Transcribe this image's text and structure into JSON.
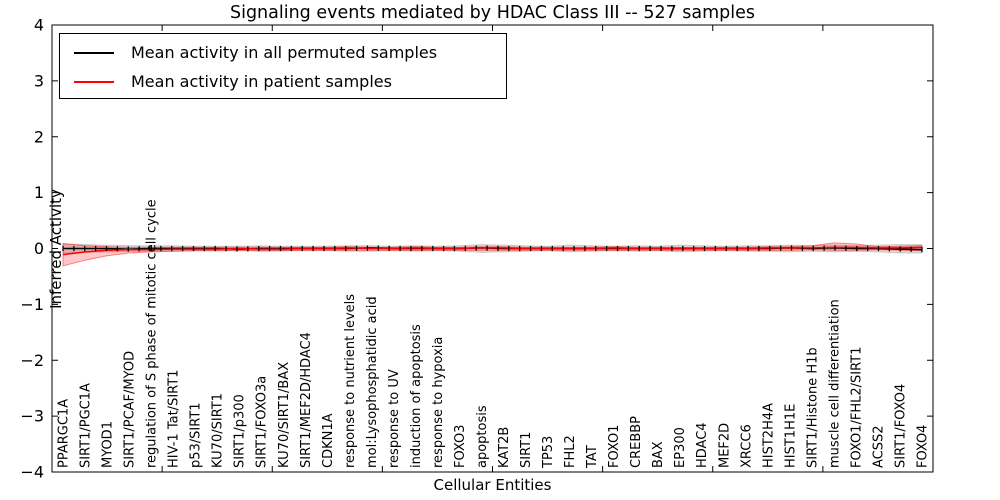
{
  "title": "Signaling events mediated by HDAC Class III -- 527 samples",
  "axes": {
    "x_label": "Cellular Entities",
    "y_label": "Inferred Activity"
  },
  "legend": {
    "position": "upper left",
    "entries": [
      {
        "label": "Mean activity in all permuted samples",
        "color": "#000000"
      },
      {
        "label": "Mean activity in patient samples",
        "color": "#ff0000"
      }
    ]
  },
  "colors": {
    "permuted_line": "#000000",
    "permuted_band": "#b0b0b0",
    "patient_line": "#ff0000",
    "patient_band": "#ff6060",
    "axis": "#000000",
    "background": "#ffffff"
  },
  "chart_data": {
    "type": "line",
    "title": "Signaling events mediated by HDAC Class III -- 527 samples",
    "xlabel": "Cellular Entities",
    "ylabel": "Inferred Activity",
    "ylim": [
      -4,
      4
    ],
    "yticks": [
      4,
      3,
      2,
      1,
      0,
      -1,
      -2,
      -3,
      -4
    ],
    "xtick_positions": [
      5,
      10,
      15,
      20,
      25,
      30,
      35,
      40
    ],
    "grid": false,
    "legend_position": "upper left",
    "categories": [
      "PPARGC1A",
      "SIRT1/PGC1A",
      "MYOD1",
      "SIRT1/PCAF/MYOD",
      "regulation of S phase of mitotic cell cycle",
      "HIV-1 Tat/SIRT1",
      "p53/SIRT1",
      "KU70/SIRT1",
      "SIRT1/p300",
      "SIRT1/FOXO3a",
      "KU70/SIRT1/BAX",
      "SIRT1/MEF2D/HDAC4",
      "CDKN1A",
      "response to nutrient levels",
      "mol:Lysophosphatidic acid",
      "response to UV",
      "induction of apoptosis",
      "response to hypoxia",
      "FOXO3",
      "apoptosis",
      "KAT2B",
      "SIRT1",
      "TP53",
      "FHL2",
      "TAT",
      "FOXO1",
      "CREBBP",
      "BAX",
      "EP300",
      "HDAC4",
      "MEF2D",
      "XRCC6",
      "HIST2H4A",
      "HIST1H1E",
      "SIRT1/Histone H1b",
      "muscle cell differentiation",
      "FOXO1/FHL2/SIRT1",
      "ACSS2",
      "SIRT1/FOXO4",
      "FOXO4"
    ],
    "series": [
      {
        "name": "Mean activity in all permuted samples",
        "color": "#000000",
        "values": [
          0.0,
          0.0,
          0.0,
          -0.01,
          0.0,
          0.0,
          0.0,
          0.0,
          -0.01,
          0.0,
          0.0,
          0.0,
          0.0,
          0.0,
          0.01,
          0.0,
          0.0,
          0.0,
          0.0,
          0.01,
          0.0,
          0.0,
          0.0,
          0.0,
          0.0,
          0.0,
          0.0,
          0.0,
          0.0,
          0.0,
          0.0,
          0.0,
          0.0,
          0.01,
          0.0,
          0.01,
          0.0,
          0.0,
          -0.01,
          -0.02
        ],
        "band_hi": [
          0.08,
          0.07,
          0.06,
          0.05,
          0.05,
          0.05,
          0.04,
          0.04,
          0.04,
          0.05,
          0.04,
          0.04,
          0.04,
          0.05,
          0.05,
          0.04,
          0.05,
          0.04,
          0.05,
          0.07,
          0.06,
          0.05,
          0.04,
          0.06,
          0.05,
          0.04,
          0.05,
          0.04,
          0.06,
          0.05,
          0.04,
          0.05,
          0.05,
          0.06,
          0.05,
          0.06,
          0.05,
          0.06,
          0.07,
          0.07
        ],
        "band_lo": [
          -0.08,
          -0.07,
          -0.06,
          -0.05,
          -0.05,
          -0.05,
          -0.04,
          -0.04,
          -0.04,
          -0.05,
          -0.04,
          -0.04,
          -0.04,
          -0.05,
          -0.05,
          -0.04,
          -0.05,
          -0.04,
          -0.05,
          -0.07,
          -0.06,
          -0.05,
          -0.04,
          -0.06,
          -0.05,
          -0.04,
          -0.05,
          -0.04,
          -0.06,
          -0.05,
          -0.04,
          -0.05,
          -0.05,
          -0.06,
          -0.05,
          -0.06,
          -0.05,
          -0.06,
          -0.08,
          -0.08
        ]
      },
      {
        "name": "Mean activity in patient samples",
        "color": "#ff0000",
        "values": [
          -0.11,
          -0.06,
          -0.03,
          -0.02,
          -0.02,
          -0.01,
          -0.01,
          -0.01,
          0.0,
          -0.01,
          -0.01,
          0.0,
          0.0,
          0.01,
          0.0,
          0.0,
          0.01,
          0.0,
          0.0,
          0.01,
          0.01,
          0.0,
          0.0,
          0.0,
          0.0,
          0.01,
          0.0,
          0.0,
          0.0,
          0.0,
          0.0,
          0.0,
          0.01,
          0.01,
          0.01,
          0.02,
          0.02,
          0.01,
          0.01,
          0.02
        ],
        "band_hi": [
          0.09,
          0.05,
          0.03,
          0.02,
          0.02,
          0.02,
          0.02,
          0.02,
          0.02,
          0.02,
          0.02,
          0.02,
          0.02,
          0.03,
          0.02,
          0.02,
          0.03,
          0.02,
          0.02,
          0.03,
          0.03,
          0.02,
          0.02,
          0.02,
          0.02,
          0.03,
          0.02,
          0.02,
          0.02,
          0.02,
          0.02,
          0.02,
          0.03,
          0.03,
          0.05,
          0.1,
          0.08,
          0.03,
          0.04,
          0.05
        ],
        "band_lo": [
          -0.31,
          -0.21,
          -0.13,
          -0.08,
          -0.06,
          -0.05,
          -0.04,
          -0.04,
          -0.03,
          -0.04,
          -0.04,
          -0.03,
          -0.03,
          -0.03,
          -0.03,
          -0.03,
          -0.03,
          -0.03,
          -0.03,
          -0.03,
          -0.03,
          -0.03,
          -0.03,
          -0.03,
          -0.03,
          -0.03,
          -0.03,
          -0.03,
          -0.03,
          -0.03,
          -0.03,
          -0.03,
          -0.03,
          -0.03,
          -0.02,
          -0.03,
          -0.03,
          -0.02,
          -0.03,
          -0.04
        ]
      }
    ],
    "marker_count": 80
  }
}
